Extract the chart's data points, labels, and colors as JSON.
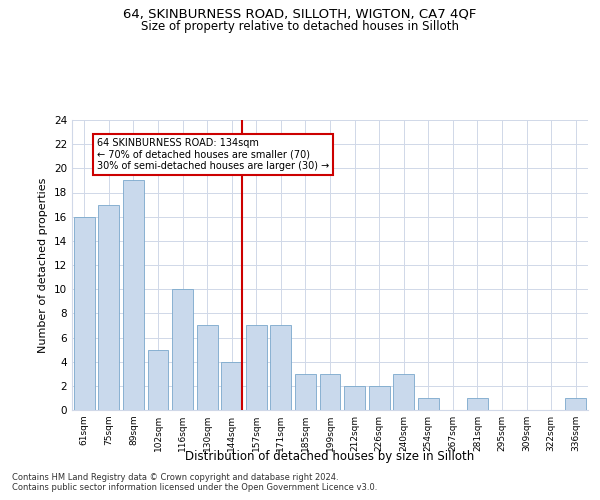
{
  "title1": "64, SKINBURNESS ROAD, SILLOTH, WIGTON, CA7 4QF",
  "title2": "Size of property relative to detached houses in Silloth",
  "xlabel": "Distribution of detached houses by size in Silloth",
  "ylabel": "Number of detached properties",
  "categories": [
    "61sqm",
    "75sqm",
    "89sqm",
    "102sqm",
    "116sqm",
    "130sqm",
    "144sqm",
    "157sqm",
    "171sqm",
    "185sqm",
    "199sqm",
    "212sqm",
    "226sqm",
    "240sqm",
    "254sqm",
    "267sqm",
    "281sqm",
    "295sqm",
    "309sqm",
    "322sqm",
    "336sqm"
  ],
  "values": [
    16,
    17,
    19,
    5,
    10,
    7,
    4,
    7,
    7,
    3,
    3,
    2,
    2,
    3,
    1,
    0,
    1,
    0,
    0,
    0,
    1
  ],
  "bar_color": "#c9d9ec",
  "bar_edge_color": "#7aa8cc",
  "highlight_index": 6,
  "highlight_color": "#cc0000",
  "ylim": [
    0,
    24
  ],
  "yticks": [
    0,
    2,
    4,
    6,
    8,
    10,
    12,
    14,
    16,
    18,
    20,
    22,
    24
  ],
  "annotation_title": "64 SKINBURNESS ROAD: 134sqm",
  "annotation_line1": "← 70% of detached houses are smaller (70)",
  "annotation_line2": "30% of semi-detached houses are larger (30) →",
  "annotation_box_color": "#ffffff",
  "annotation_box_edge": "#cc0000",
  "footer1": "Contains HM Land Registry data © Crown copyright and database right 2024.",
  "footer2": "Contains public sector information licensed under the Open Government Licence v3.0.",
  "bg_color": "#ffffff",
  "grid_color": "#d0d8e8"
}
